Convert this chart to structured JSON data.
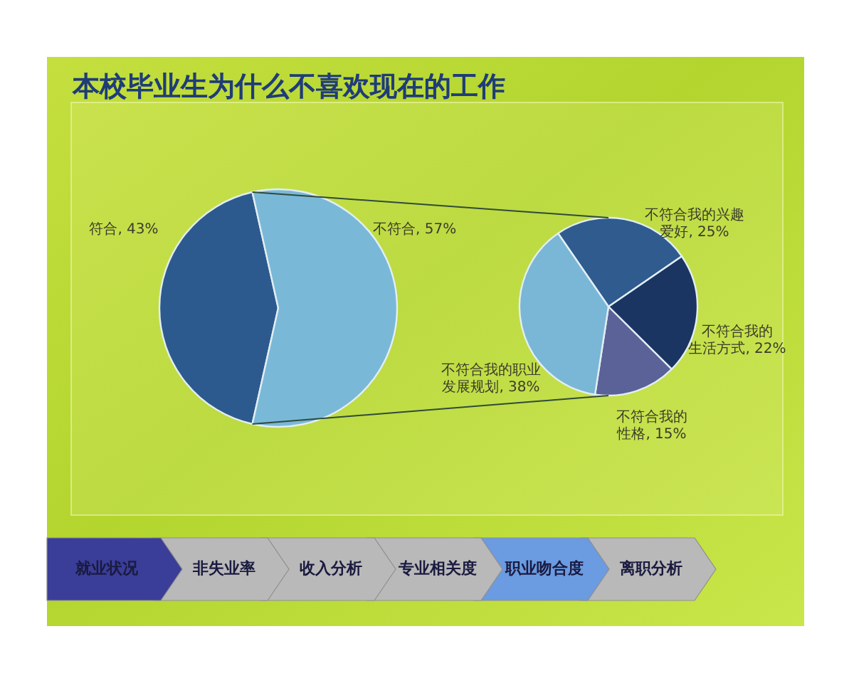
{
  "chart_data": [
    {
      "type": "pie",
      "title": "本校毕业生为什么不喜欢现在的工作",
      "categories": [
        "符合",
        "不符合"
      ],
      "values": [
        43,
        57
      ],
      "colors": [
        "#2d5a8e",
        "#7ab8d8"
      ],
      "value_labels": [
        ", 43%",
        ", 57%"
      ]
    },
    {
      "type": "pie",
      "categories": [
        "不符合我的兴趣爱好",
        "不符合我的生活方式",
        "不符合我的性格",
        "不符合我的职业发展规划"
      ],
      "values": [
        25,
        22,
        15,
        38
      ],
      "colors": [
        "#2f5b8f",
        "#1b3562",
        "#5a6298",
        "#7ab6d6"
      ],
      "value_labels": [
        ", 25%",
        ", 22%",
        ", 15%",
        ", 38%"
      ]
    },
    {
      "type": "other",
      "annotations": [
        "就业状况",
        "非失业率",
        "收入分析",
        "专业相关度",
        "职业吻合度",
        "离职分析"
      ],
      "colors": [
        "#3a3e98",
        "#b9b9b9",
        "#b9b9b9",
        "#b9b9b9",
        "#6b9be0",
        "#b9b9b9"
      ]
    }
  ]
}
